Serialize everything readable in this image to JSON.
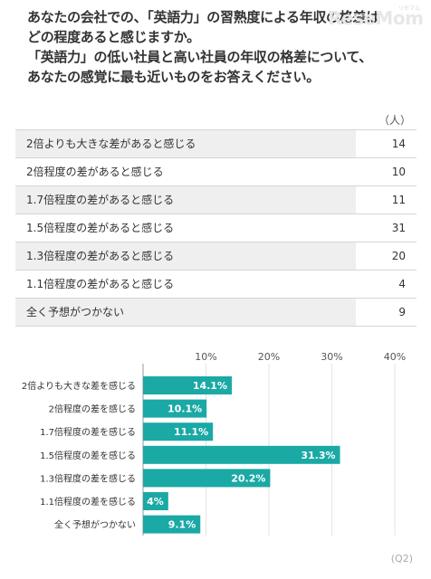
{
  "question": {
    "lines": [
      "あなたの会社での、「英語力」の習熟度による年収の格差は",
      "どの程度あると感じますか。",
      "「英語力」の低い社員と高い社員の年収の格差について、",
      "あなたの感覚に最も近いものをお答えください。"
    ]
  },
  "logo": {
    "text": "ReseMom",
    "sub": "リセマム"
  },
  "table": {
    "unit": "（人）",
    "rows": [
      {
        "label": "2倍よりも大きな差があると感じる",
        "count": "14"
      },
      {
        "label": "2倍程度の差があると感じる",
        "count": "10"
      },
      {
        "label": "1.7倍程度の差があると感じる",
        "count": "11"
      },
      {
        "label": "1.5倍程度の差があると感じる",
        "count": "31"
      },
      {
        "label": "1.3倍程度の差があると感じる",
        "count": "20"
      },
      {
        "label": "1.1倍程度の差があると感じる",
        "count": "4"
      },
      {
        "label": "全く予想がつかない",
        "count": "9"
      }
    ]
  },
  "chart_data": {
    "type": "bar",
    "orientation": "horizontal",
    "categories": [
      "2倍よりも大きな差を感じる",
      "2倍程度の差を感じる",
      "1.7倍程度の差を感じる",
      "1.5倍程度の差を感じる",
      "1.3倍程度の差を感じる",
      "1.1倍程度の差を感じる",
      "全く予想がつかない"
    ],
    "values": [
      14.1,
      10.1,
      11.1,
      31.3,
      20.2,
      4,
      9.1
    ],
    "data_labels": [
      "14.1%",
      "10.1%",
      "11.1%",
      "31.3%",
      "20.2%",
      "4%",
      "9.1%"
    ],
    "xlim": [
      0,
      40
    ],
    "ticks": [
      10,
      20,
      30,
      40
    ],
    "tick_labels": [
      "10%",
      "20%",
      "30%",
      "40%"
    ],
    "grid": true,
    "bar_color": "#1aa9a5",
    "label_color": "#ffffff",
    "grid_color": "#e3e3e3",
    "axis_color": "#9a9a9a"
  },
  "footer": {
    "code": "(Q2)"
  }
}
